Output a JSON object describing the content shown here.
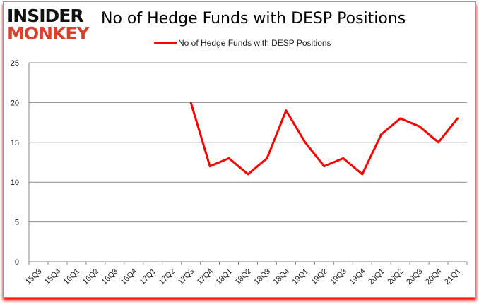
{
  "logo": {
    "line1": "INSIDER",
    "line2": "MONKEY"
  },
  "chart_data": {
    "type": "line",
    "title": "No of Hedge Funds with DESP Positions",
    "categories": [
      "15Q3",
      "15Q4",
      "16Q1",
      "16Q2",
      "16Q3",
      "16Q4",
      "17Q1",
      "17Q2",
      "17Q3",
      "17Q4",
      "18Q1",
      "18Q2",
      "18Q3",
      "18Q4",
      "19Q1",
      "19Q2",
      "19Q3",
      "19Q4",
      "20Q1",
      "20Q2",
      "20Q3",
      "20Q4",
      "21Q1"
    ],
    "series": [
      {
        "name": "No of Hedge Funds with DESP Positions",
        "color": "#ff0000",
        "values": [
          null,
          null,
          null,
          null,
          null,
          null,
          null,
          null,
          20,
          12,
          13,
          11,
          13,
          19,
          15,
          12,
          13,
          11,
          16,
          18,
          17,
          15,
          18
        ]
      }
    ],
    "ylim": [
      0,
      25
    ],
    "yticks": [
      0,
      5,
      10,
      15,
      20,
      25
    ],
    "grid": true,
    "legend": "top-center"
  }
}
